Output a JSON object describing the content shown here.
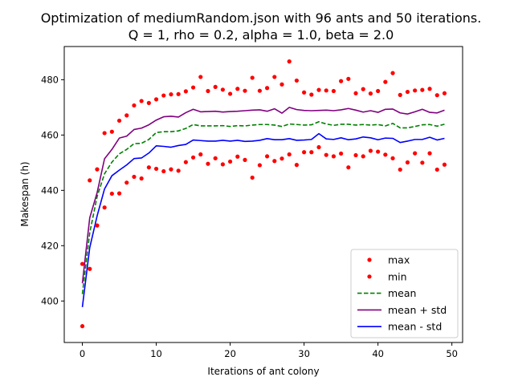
{
  "chart_data": {
    "type": "line",
    "title": "Optimization of mediumRandom.json with 96 ants and 50 iterations.",
    "subtitle": "Q = 1, rho = 0.2, alpha = 1.0, beta = 2.0",
    "xlabel": "Iterations of ant colony",
    "ylabel": "Makespan (h)",
    "xlim": [
      -2.45,
      51.45
    ],
    "ylim": [
      385,
      492
    ],
    "xticks": [
      0,
      10,
      20,
      30,
      40,
      50
    ],
    "yticks": [
      400,
      420,
      440,
      460,
      480
    ],
    "grid": false,
    "legend_position": "lower-right",
    "x": [
      0,
      1,
      2,
      3,
      4,
      5,
      6,
      7,
      8,
      9,
      10,
      11,
      12,
      13,
      14,
      15,
      16,
      17,
      18,
      19,
      20,
      21,
      22,
      23,
      24,
      25,
      26,
      27,
      28,
      29,
      30,
      31,
      32,
      33,
      34,
      35,
      36,
      37,
      38,
      39,
      40,
      41,
      42,
      43,
      44,
      45,
      46,
      47,
      48,
      49
    ],
    "series": [
      {
        "name": "max",
        "style": "points",
        "color": "#ff0000",
        "values": [
          413.4,
          443.6,
          447.6,
          460.7,
          461.2,
          465.2,
          467.1,
          470.7,
          472.3,
          471.6,
          472.9,
          474.3,
          474.7,
          474.8,
          475.8,
          477.2,
          481.0,
          475.9,
          477.4,
          476.4,
          474.9,
          476.7,
          476.0,
          480.7,
          476.0,
          477.0,
          481.0,
          478.3,
          486.6,
          479.7,
          475.4,
          474.6,
          476.3,
          476.1,
          475.9,
          479.5,
          480.3,
          475.1,
          476.6,
          475.0,
          475.9,
          479.2,
          482.4,
          474.5,
          475.6,
          476.1,
          476.3,
          476.7,
          474.4,
          475.1
        ]
      },
      {
        "name": "min",
        "style": "points",
        "color": "#ff0000",
        "values": [
          390.9,
          411.6,
          427.3,
          433.8,
          438.8,
          438.9,
          442.8,
          444.9,
          444.3,
          448.3,
          447.8,
          446.9,
          447.6,
          447.1,
          450.2,
          451.9,
          453.0,
          449.6,
          451.6,
          449.4,
          450.4,
          452.2,
          451.0,
          444.6,
          449.1,
          452.3,
          450.6,
          451.5,
          453.0,
          449.2,
          453.8,
          453.8,
          455.6,
          452.8,
          452.3,
          453.3,
          448.3,
          452.7,
          452.3,
          454.3,
          454.0,
          452.9,
          451.6,
          447.5,
          450.1,
          453.4,
          450.0,
          453.4,
          447.5,
          449.3
        ]
      },
      {
        "name": "mean",
        "style": "dashed",
        "color": "#008000",
        "values": [
          402.5,
          424.7,
          437.8,
          446.0,
          450.2,
          453.2,
          454.8,
          456.9,
          457.0,
          458.4,
          460.9,
          461.2,
          461.2,
          461.5,
          462.4,
          463.8,
          463.3,
          463.3,
          463.3,
          463.4,
          463.1,
          463.4,
          463.3,
          463.6,
          463.8,
          463.8,
          463.6,
          463.1,
          464.0,
          463.8,
          463.6,
          463.7,
          464.8,
          464.0,
          463.5,
          463.9,
          463.9,
          463.6,
          463.8,
          463.6,
          463.8,
          463.3,
          464.2,
          462.6,
          462.6,
          463.1,
          463.7,
          463.8,
          463.2,
          463.9
        ]
      },
      {
        "name": "mean + std",
        "style": "solid",
        "color": "#800080",
        "values": [
          406.4,
          430.1,
          439.2,
          451.4,
          454.8,
          458.9,
          459.6,
          462.0,
          462.5,
          463.7,
          465.4,
          466.6,
          466.8,
          466.5,
          468.1,
          469.3,
          468.4,
          468.5,
          468.6,
          468.3,
          468.5,
          468.6,
          468.8,
          469.0,
          469.1,
          468.6,
          469.5,
          467.9,
          470.0,
          469.2,
          468.9,
          468.8,
          468.9,
          469.0,
          468.8,
          469.1,
          469.6,
          469.0,
          468.3,
          468.8,
          468.2,
          469.3,
          469.4,
          468.0,
          467.6,
          468.4,
          469.3,
          468.2,
          468.0,
          469.0
        ]
      },
      {
        "name": "mean - std",
        "style": "solid",
        "color": "#0000ff",
        "values": [
          397.8,
          419.3,
          430.8,
          440.5,
          445.3,
          447.3,
          449.2,
          451.5,
          451.7,
          453.5,
          456.1,
          455.9,
          455.6,
          456.2,
          456.6,
          458.2,
          458.0,
          457.8,
          457.8,
          458.1,
          457.8,
          458.1,
          457.7,
          457.8,
          458.1,
          458.7,
          458.3,
          458.3,
          458.7,
          458.1,
          458.2,
          458.4,
          460.5,
          458.6,
          458.4,
          459.0,
          458.3,
          458.6,
          459.3,
          459.0,
          458.3,
          458.9,
          458.8,
          457.3,
          457.8,
          458.4,
          458.4,
          459.2,
          458.2,
          458.8
        ]
      }
    ]
  }
}
